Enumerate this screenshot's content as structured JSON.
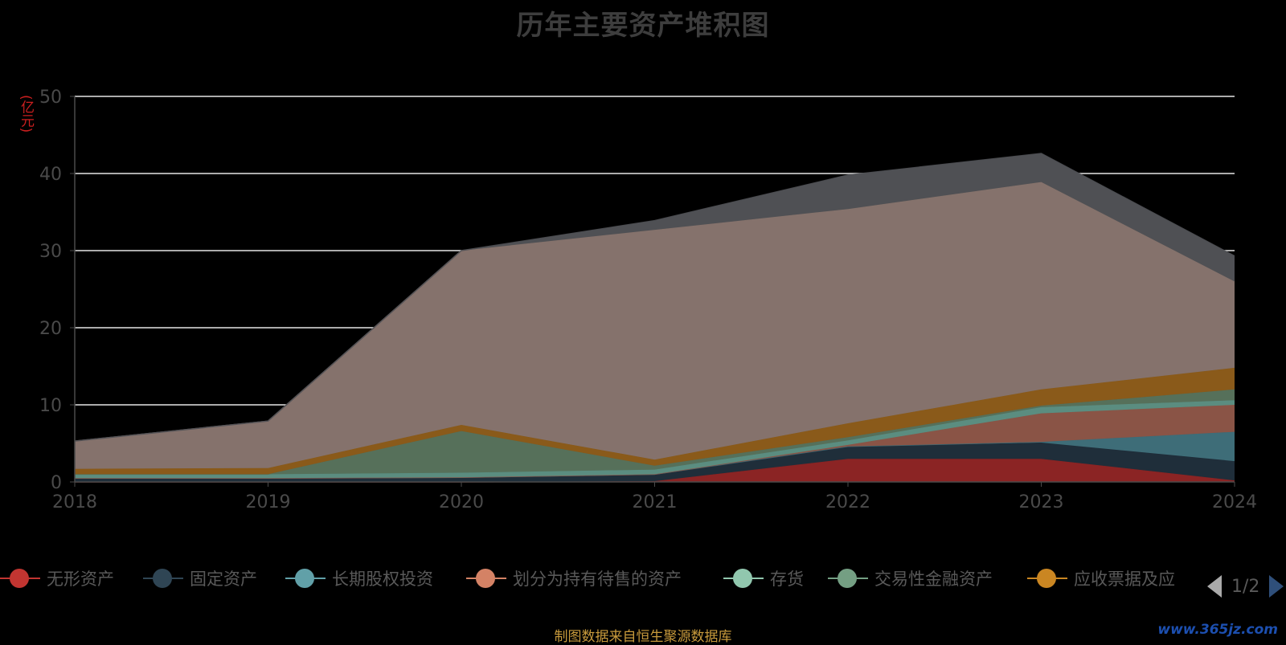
{
  "chart_data": {
    "type": "area",
    "title": "历年主要资产堆积图",
    "ylabel": "(亿元)",
    "categories": [
      "2018",
      "2019",
      "2020",
      "2021",
      "2022",
      "2023",
      "2024"
    ],
    "ylim": [
      0,
      50
    ],
    "yticks": [
      0,
      10,
      20,
      30,
      40,
      50
    ],
    "stacked": true,
    "grid": true,
    "legend_position": "bottom",
    "series": [
      {
        "name": "无形资产",
        "color": "#8b2424",
        "values": [
          0,
          0,
          0,
          0.1,
          3.0,
          3.0,
          0.2
        ]
      },
      {
        "name": "固定资产",
        "color": "#1f2e3a",
        "values": [
          0.5,
          0.5,
          0.6,
          0.9,
          1.6,
          2.1,
          2.5
        ]
      },
      {
        "name": "长期股权投资",
        "color": "#3e6d78",
        "values": [
          0,
          0,
          0,
          0,
          0,
          0.1,
          3.8
        ]
      },
      {
        "name": "划分为持有待售的资产",
        "color": "#8a5446",
        "values": [
          0,
          0,
          0,
          0,
          0.2,
          3.7,
          3.5
        ]
      },
      {
        "name": "存货",
        "color": "#5b8d80",
        "values": [
          0.5,
          0.5,
          0.6,
          0.6,
          0.6,
          0.8,
          0.6
        ]
      },
      {
        "name": "交易性金融资产",
        "color": "#56705a",
        "values": [
          0,
          0,
          5.4,
          0.5,
          0.4,
          0.2,
          1.4
        ]
      },
      {
        "name": "应收票据及应",
        "color": "#8a5a1a",
        "values": [
          0.7,
          0.8,
          0.8,
          0.8,
          1.8,
          2.1,
          2.8
        ]
      },
      {
        "name": "",
        "color": "#85726c",
        "values": [
          3.6,
          6.1,
          22.6,
          29.8,
          27.8,
          26.9,
          11.2
        ]
      },
      {
        "name": "",
        "color": "#4f5054",
        "values": [
          0,
          0,
          0,
          1.2,
          4.4,
          3.7,
          3.3
        ]
      }
    ]
  },
  "legend": {
    "items": [
      {
        "label": "无形资产",
        "color": "#c23531"
      },
      {
        "label": "固定资产",
        "color": "#2f4554"
      },
      {
        "label": "长期股权投资",
        "color": "#61a0a8"
      },
      {
        "label": "划分为持有待售的资产",
        "color": "#d48265"
      },
      {
        "label": "存货",
        "color": "#91c7ae"
      },
      {
        "label": "交易性金融资产",
        "color": "#749f83"
      },
      {
        "label": "应收票据及应",
        "color": "#ca8622"
      }
    ],
    "page_text": "1/2"
  },
  "source": "制图数据来自恒生聚源数据库",
  "watermark": "www.365jz.com"
}
